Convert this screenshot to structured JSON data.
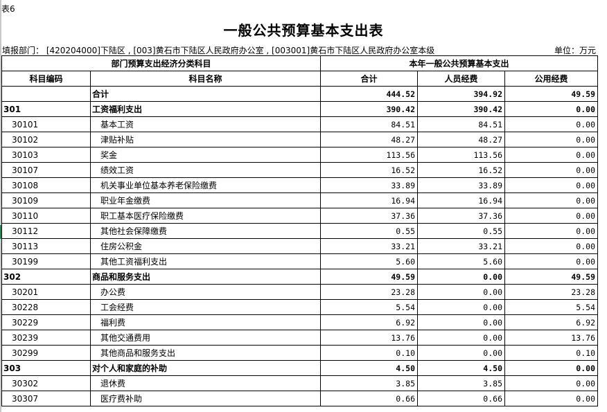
{
  "sheet_label": "表6",
  "title": "一般公共预算基本支出表",
  "info": "填报部门： [420204000]下陆区 , [003]黄石市下陆区人民政府办公室 , [003001]黄石市下陆区人民政府办公室本级",
  "unit": "单位：万元",
  "header": {
    "group_left": "部门预算支出经济分类科目",
    "group_right": "本年一般公共预算基本支出",
    "col_code": "科目编码",
    "col_name": "科目名称",
    "col_total": "合计",
    "col_personnel": "人员经费",
    "col_public": "公用经费"
  },
  "rows": [
    {
      "code": "",
      "name": "合计",
      "total": "444.52",
      "personnel": "394.92",
      "public": "49.59",
      "bold": true
    },
    {
      "code": "301",
      "name": "工资福利支出",
      "total": "390.42",
      "personnel": "390.42",
      "public": "0.00",
      "bold": true
    },
    {
      "code": "30101",
      "name": "基本工资",
      "total": "84.51",
      "personnel": "84.51",
      "public": "0.00"
    },
    {
      "code": "30102",
      "name": "津贴补贴",
      "total": "48.27",
      "personnel": "48.27",
      "public": "0.00"
    },
    {
      "code": "30103",
      "name": "奖金",
      "total": "113.56",
      "personnel": "113.56",
      "public": "0.00"
    },
    {
      "code": "30107",
      "name": "绩效工资",
      "total": "16.52",
      "personnel": "16.52",
      "public": "0.00"
    },
    {
      "code": "30108",
      "name": "机关事业单位基本养老保险缴费",
      "total": "33.89",
      "personnel": "33.89",
      "public": "0.00"
    },
    {
      "code": "30109",
      "name": "职业年金缴费",
      "total": "16.94",
      "personnel": "16.94",
      "public": "0.00"
    },
    {
      "code": "30110",
      "name": "职工基本医疗保险缴费",
      "total": "37.36",
      "personnel": "37.36",
      "public": "0.00"
    },
    {
      "code": "30112",
      "name": "其他社会保障缴费",
      "total": "0.55",
      "personnel": "0.55",
      "public": "0.00"
    },
    {
      "code": "30113",
      "name": "住房公积金",
      "total": "33.21",
      "personnel": "33.21",
      "public": "0.00"
    },
    {
      "code": "30199",
      "name": "其他工资福利支出",
      "total": "5.60",
      "personnel": "5.60",
      "public": "0.00"
    },
    {
      "code": "302",
      "name": "商品和服务支出",
      "total": "49.59",
      "personnel": "0.00",
      "public": "49.59",
      "bold": true
    },
    {
      "code": "30201",
      "name": "办公费",
      "total": "23.28",
      "personnel": "0.00",
      "public": "23.28"
    },
    {
      "code": "30228",
      "name": "工会经费",
      "total": "5.54",
      "personnel": "0.00",
      "public": "5.54"
    },
    {
      "code": "30229",
      "name": "福利费",
      "total": "6.92",
      "personnel": "0.00",
      "public": "6.92"
    },
    {
      "code": "30239",
      "name": "其他交通费用",
      "total": "13.76",
      "personnel": "0.00",
      "public": "13.76"
    },
    {
      "code": "30299",
      "name": "其他商品和服务支出",
      "total": "0.10",
      "personnel": "0.00",
      "public": "0.10"
    },
    {
      "code": "303",
      "name": "对个人和家庭的补助",
      "total": "4.50",
      "personnel": "4.50",
      "public": "0.00",
      "bold": true
    },
    {
      "code": "30302",
      "name": "退休费",
      "total": "3.85",
      "personnel": "3.85",
      "public": "0.00"
    },
    {
      "code": "30307",
      "name": "医疗费补助",
      "total": "0.66",
      "personnel": "0.66",
      "public": "0.00"
    }
  ]
}
